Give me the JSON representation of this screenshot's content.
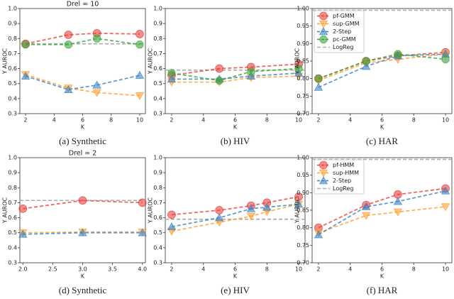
{
  "chart_data": [
    {
      "type": "line",
      "title": "Drel = 10",
      "caption": "(a) Synthetic",
      "xlabel": "K",
      "ylabel": "Y AUROC",
      "x": [
        2,
        5,
        7,
        10
      ],
      "xlim": [
        1.6,
        10.4
      ],
      "ylim": [
        0.3,
        1.0
      ],
      "xticks": [
        2,
        4,
        6,
        8,
        10
      ],
      "yticks": [
        0.3,
        0.4,
        0.5,
        0.6,
        0.7,
        0.8,
        0.9,
        {
          "value": 1.0,
          "label": "1.0"
        }
      ],
      "series": [
        {
          "color": "#e8413f",
          "marker": "circle",
          "values": [
            0.765,
            0.825,
            0.835,
            0.83
          ]
        },
        {
          "color": "#ff9f2e",
          "marker": "triangle-down",
          "values": [
            0.56,
            0.47,
            0.44,
            0.42
          ]
        },
        {
          "color": "#3b84c4",
          "marker": "triangle-up",
          "values": [
            0.55,
            0.46,
            0.49,
            0.555
          ]
        },
        {
          "color": "#3aa53a",
          "marker": "octagon",
          "values": [
            0.76,
            0.76,
            0.8,
            0.76
          ]
        }
      ],
      "reference": {
        "color": "#aaaaaa",
        "value": 0.765
      }
    },
    {
      "type": "line",
      "caption": "(b) HIV",
      "xlabel": "K",
      "ylabel": "Y AUROC",
      "x": [
        2,
        5,
        7,
        10
      ],
      "xlim": [
        1.6,
        10.4
      ],
      "ylim": [
        0.3,
        1.0
      ],
      "xticks": [
        2,
        4,
        6,
        8,
        10
      ],
      "yticks": [
        0.3,
        0.4,
        0.5,
        0.6,
        0.7,
        0.8,
        0.9,
        {
          "value": 1.0,
          "label": "1.0"
        }
      ],
      "series": [
        {
          "color": "#e8413f",
          "marker": "circle",
          "values": [
            0.555,
            0.6,
            0.61,
            0.63
          ]
        },
        {
          "color": "#ff9f2e",
          "marker": "triangle-down",
          "values": [
            0.51,
            0.51,
            0.54,
            0.55
          ]
        },
        {
          "color": "#3b84c4",
          "marker": "triangle-up",
          "values": [
            0.53,
            0.53,
            0.55,
            0.57
          ]
        },
        {
          "color": "#3aa53a",
          "marker": "octagon",
          "values": [
            0.57,
            0.52,
            0.58,
            0.6
          ]
        }
      ],
      "reference": {
        "color": "#aaaaaa",
        "value": 0.59
      }
    },
    {
      "type": "line",
      "caption": "(c) HAR",
      "xlabel": "K",
      "ylabel": "Y AUROC",
      "legend": "upper left",
      "x": [
        2,
        5,
        7,
        10
      ],
      "xlim": [
        1.6,
        10.4
      ],
      "ylim": [
        0.7,
        1.0
      ],
      "xticks": [
        2,
        4,
        6,
        8,
        10
      ],
      "yticks": [
        {
          "value": 0.7,
          "label": "0.70"
        },
        0.75,
        {
          "value": 0.8,
          "label": "0.80"
        },
        0.85,
        {
          "value": 0.9,
          "label": "0.90"
        },
        0.95,
        {
          "value": 1.0,
          "label": "1.00"
        }
      ],
      "series": [
        {
          "name": "pf-GMM",
          "color": "#e8413f",
          "marker": "circle",
          "values": [
            0.8,
            0.85,
            0.865,
            0.875
          ]
        },
        {
          "name": "sup-GMM",
          "color": "#ff9f2e",
          "marker": "triangle-down",
          "values": [
            0.795,
            0.845,
            0.855,
            0.87
          ]
        },
        {
          "name": "2-Step",
          "color": "#3b84c4",
          "marker": "triangle-up",
          "values": [
            0.775,
            0.835,
            0.865,
            0.87
          ]
        },
        {
          "name": "pc-GMM",
          "color": "#3aa53a",
          "marker": "octagon",
          "values": [
            0.8,
            0.85,
            0.87,
            0.855
          ]
        }
      ],
      "reference": {
        "name": "LogReg",
        "color": "#aaaaaa",
        "value": 0.995
      }
    },
    {
      "type": "line",
      "title": "Drel = 2",
      "caption": "(d) Synthetic",
      "xlabel": "K",
      "ylabel": "Y AUROC",
      "x": [
        2,
        3,
        4
      ],
      "xlim": [
        1.95,
        4.05
      ],
      "ylim": [
        0.3,
        1.0
      ],
      "xticks": [
        {
          "value": 2,
          "label": "2.0"
        },
        2.5,
        {
          "value": 3,
          "label": "3.0"
        },
        3.5,
        {
          "value": 4,
          "label": "4.0"
        }
      ],
      "yticks": [
        0.3,
        0.4,
        0.5,
        0.6,
        0.7,
        0.8,
        0.9,
        {
          "value": 1.0,
          "label": "1.0"
        }
      ],
      "series": [
        {
          "color": "#e8413f",
          "marker": "circle",
          "values": [
            0.66,
            0.715,
            0.7
          ]
        },
        {
          "color": "#ff9f2e",
          "marker": "triangle-down",
          "values": [
            0.5,
            0.505,
            0.505
          ]
        },
        {
          "color": "#3b84c4",
          "marker": "triangle-up",
          "values": [
            0.49,
            0.5,
            0.5
          ]
        }
      ],
      "reference": {
        "color": "#aaaaaa",
        "value": 0.715
      }
    },
    {
      "type": "line",
      "caption": "(e) HIV",
      "xlabel": "K",
      "ylabel": "Y AUROC",
      "x": [
        2,
        5,
        7,
        8,
        10
      ],
      "xlim": [
        1.6,
        10.4
      ],
      "ylim": [
        0.3,
        1.0
      ],
      "xticks": [
        2,
        4,
        6,
        8,
        10
      ],
      "yticks": [
        0.3,
        0.4,
        0.5,
        0.6,
        0.7,
        0.8,
        0.9,
        {
          "value": 1.0,
          "label": "1.0"
        }
      ],
      "series": [
        {
          "color": "#e8413f",
          "marker": "circle",
          "values": [
            0.62,
            0.65,
            0.68,
            0.7,
            0.74
          ]
        },
        {
          "color": "#ff9f2e",
          "marker": "triangle-down",
          "values": [
            0.51,
            0.57,
            0.61,
            0.64,
            0.69
          ]
        },
        {
          "color": "#3b84c4",
          "marker": "triangle-up",
          "values": [
            0.54,
            0.6,
            0.66,
            0.67,
            0.69
          ]
        }
      ],
      "reference": {
        "color": "#aaaaaa",
        "value": 0.59
      }
    },
    {
      "type": "line",
      "caption": "(f) HAR",
      "xlabel": "K",
      "ylabel": "Y AUROC",
      "legend": "upper left",
      "x": [
        2,
        5,
        7,
        10
      ],
      "xlim": [
        1.6,
        10.4
      ],
      "ylim": [
        0.7,
        1.0
      ],
      "xticks": [
        2,
        4,
        6,
        8,
        10
      ],
      "yticks": [
        {
          "value": 0.7,
          "label": "0.70"
        },
        0.75,
        {
          "value": 0.8,
          "label": "0.80"
        },
        0.85,
        {
          "value": 0.9,
          "label": "0.90"
        },
        0.95,
        {
          "value": 1.0,
          "label": "1.00"
        }
      ],
      "series": [
        {
          "name": "pf-HMM",
          "color": "#e8413f",
          "marker": "circle",
          "values": [
            0.8,
            0.865,
            0.895,
            0.912
          ]
        },
        {
          "name": "sup-HMM",
          "color": "#ff9f2e",
          "marker": "triangle-down",
          "values": [
            0.785,
            0.835,
            0.845,
            0.86
          ]
        },
        {
          "name": "2-Step",
          "color": "#3b84c4",
          "marker": "triangle-up",
          "values": [
            0.78,
            0.86,
            0.875,
            0.905
          ]
        }
      ],
      "reference": {
        "name": "LogReg",
        "color": "#aaaaaa",
        "value": 0.995
      }
    }
  ]
}
